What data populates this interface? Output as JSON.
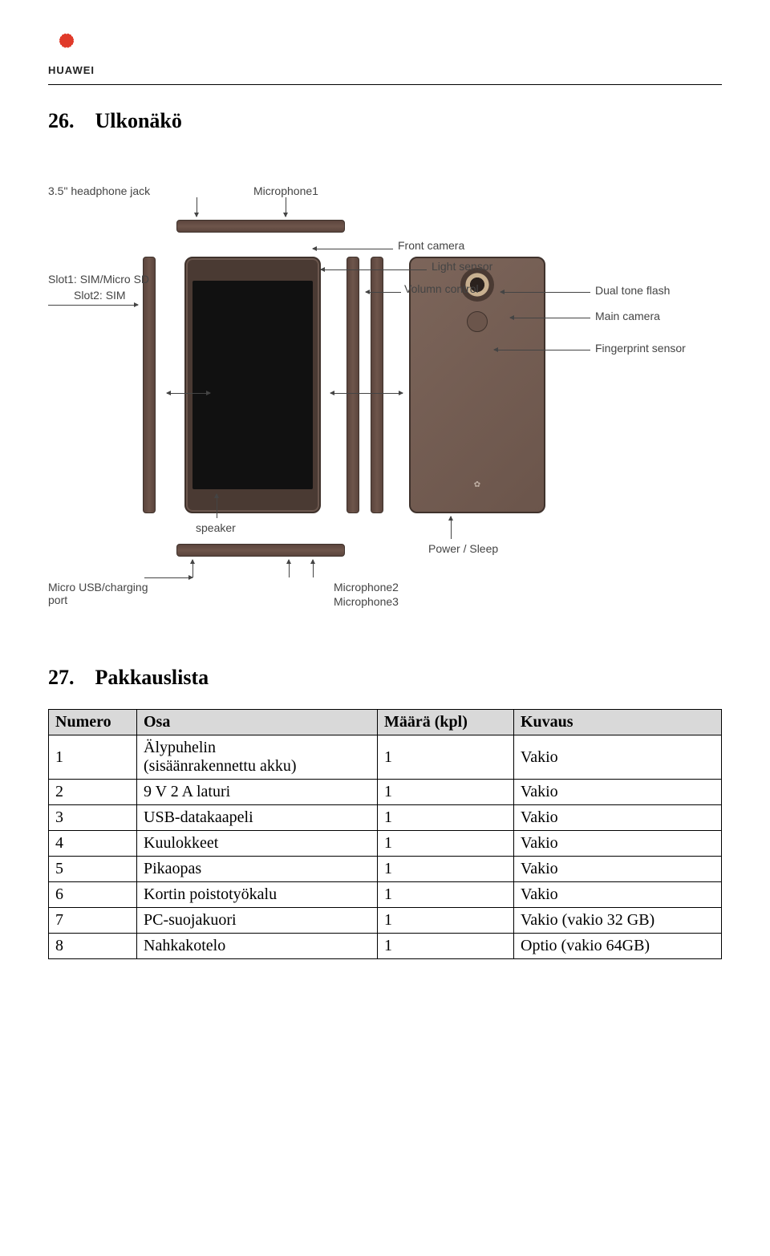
{
  "brand": {
    "name": "HUAWEI"
  },
  "sections": {
    "appearance": {
      "number": "26.",
      "title": "Ulkonäkö"
    },
    "packing": {
      "number": "27.",
      "title": "Pakkauslista"
    }
  },
  "diagram": {
    "labels": {
      "headphone": "3.5\" headphone jack",
      "mic1": "Microphone1",
      "slot1": "Slot1: SIM/Micro SD",
      "slot2": "Slot2: SIM",
      "frontcam": "Front camera",
      "light": "Light sensor",
      "volume": "Volumn control",
      "dualflash": "Dual tone flash",
      "maincam": "Main camera",
      "fingerprint": "Fingerprint sensor",
      "speaker": "speaker",
      "micusb": "Micro USB/charging port",
      "mic23a": "Microphone2",
      "mic23b": "Microphone3",
      "power": "Power / Sleep"
    }
  },
  "packing_table": {
    "headers": {
      "num": "Numero",
      "part": "Osa",
      "qty": "Määrä (kpl)",
      "desc": "Kuvaus"
    },
    "rows": [
      {
        "num": "1",
        "part_a": "Älypuhelin",
        "part_b": "(sisäänrakennettu akku)",
        "qty": "1",
        "desc": "Vakio"
      },
      {
        "num": "2",
        "part_a": "9 V 2 A laturi",
        "part_b": "",
        "qty": "1",
        "desc": "Vakio"
      },
      {
        "num": "3",
        "part_a": "USB-datakaapeli",
        "part_b": "",
        "qty": "1",
        "desc": "Vakio"
      },
      {
        "num": "4",
        "part_a": "Kuulokkeet",
        "part_b": "",
        "qty": "1",
        "desc": "Vakio"
      },
      {
        "num": "5",
        "part_a": "Pikaopas",
        "part_b": "",
        "qty": "1",
        "desc": "Vakio"
      },
      {
        "num": "6",
        "part_a": "Kortin poistotyökalu",
        "part_b": "",
        "qty": "1",
        "desc": "Vakio"
      },
      {
        "num": "7",
        "part_a": "PC-suojakuori",
        "part_b": "",
        "qty": "1",
        "desc": "Vakio (vakio 32 GB)"
      },
      {
        "num": "8",
        "part_a": "Nahkakotelo",
        "part_b": "",
        "qty": "1",
        "desc": "Optio (vakio 64GB)"
      }
    ]
  }
}
